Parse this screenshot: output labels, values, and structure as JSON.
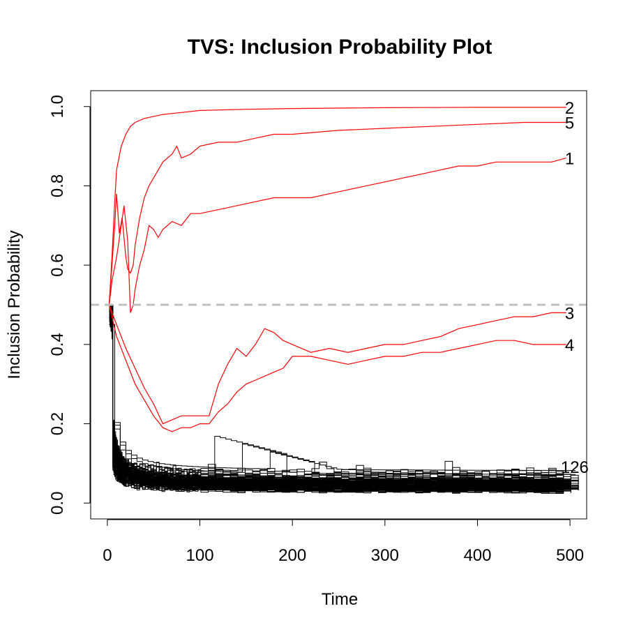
{
  "chart_data": {
    "type": "line",
    "title": "TVS: Inclusion Probability Plot",
    "xlabel": "Time",
    "ylabel": "Inclusion Probability",
    "xlim": [
      -18,
      518
    ],
    "ylim": [
      -0.04,
      1.04
    ],
    "x_ticks": [
      "0",
      "100",
      "200",
      "300",
      "400",
      "500"
    ],
    "y_ticks": [
      "0.0",
      "0.2",
      "0.4",
      "0.6",
      "0.8",
      "1.0"
    ],
    "threshold": 0.5,
    "threshold_color": "#bebebe",
    "highlight_color": "#ff0000",
    "other_color": "#000000",
    "highlighted_series": [
      {
        "name": "1",
        "points": [
          [
            2,
            0.5
          ],
          [
            5,
            0.56
          ],
          [
            10,
            0.62
          ],
          [
            15,
            0.7
          ],
          [
            18,
            0.75
          ],
          [
            22,
            0.66
          ],
          [
            25,
            0.48
          ],
          [
            28,
            0.5
          ],
          [
            30,
            0.54
          ],
          [
            35,
            0.6
          ],
          [
            40,
            0.64
          ],
          [
            45,
            0.7
          ],
          [
            50,
            0.69
          ],
          [
            55,
            0.67
          ],
          [
            60,
            0.69
          ],
          [
            70,
            0.71
          ],
          [
            80,
            0.7
          ],
          [
            90,
            0.73
          ],
          [
            100,
            0.73
          ],
          [
            120,
            0.74
          ],
          [
            140,
            0.75
          ],
          [
            160,
            0.76
          ],
          [
            180,
            0.77
          ],
          [
            200,
            0.77
          ],
          [
            220,
            0.77
          ],
          [
            240,
            0.78
          ],
          [
            260,
            0.79
          ],
          [
            280,
            0.8
          ],
          [
            300,
            0.81
          ],
          [
            320,
            0.82
          ],
          [
            340,
            0.83
          ],
          [
            360,
            0.84
          ],
          [
            380,
            0.85
          ],
          [
            400,
            0.85
          ],
          [
            420,
            0.86
          ],
          [
            440,
            0.86
          ],
          [
            460,
            0.86
          ],
          [
            480,
            0.86
          ],
          [
            496,
            0.87
          ]
        ]
      },
      {
        "name": "2",
        "points": [
          [
            2,
            0.5
          ],
          [
            5,
            0.62
          ],
          [
            8,
            0.76
          ],
          [
            10,
            0.84
          ],
          [
            15,
            0.9
          ],
          [
            20,
            0.93
          ],
          [
            25,
            0.95
          ],
          [
            30,
            0.96
          ],
          [
            40,
            0.97
          ],
          [
            60,
            0.98
          ],
          [
            80,
            0.985
          ],
          [
            100,
            0.99
          ],
          [
            150,
            0.993
          ],
          [
            200,
            0.995
          ],
          [
            300,
            0.997
          ],
          [
            400,
            0.998
          ],
          [
            496,
            0.998
          ]
        ]
      },
      {
        "name": "3",
        "points": [
          [
            2,
            0.5
          ],
          [
            10,
            0.45
          ],
          [
            20,
            0.39
          ],
          [
            30,
            0.34
          ],
          [
            40,
            0.29
          ],
          [
            50,
            0.25
          ],
          [
            60,
            0.2
          ],
          [
            70,
            0.21
          ],
          [
            80,
            0.22
          ],
          [
            90,
            0.22
          ],
          [
            100,
            0.22
          ],
          [
            110,
            0.22
          ],
          [
            120,
            0.3
          ],
          [
            130,
            0.35
          ],
          [
            140,
            0.39
          ],
          [
            150,
            0.37
          ],
          [
            160,
            0.4
          ],
          [
            170,
            0.44
          ],
          [
            180,
            0.43
          ],
          [
            190,
            0.41
          ],
          [
            200,
            0.4
          ],
          [
            220,
            0.38
          ],
          [
            240,
            0.39
          ],
          [
            260,
            0.38
          ],
          [
            280,
            0.39
          ],
          [
            300,
            0.4
          ],
          [
            320,
            0.4
          ],
          [
            340,
            0.41
          ],
          [
            360,
            0.42
          ],
          [
            380,
            0.44
          ],
          [
            400,
            0.45
          ],
          [
            420,
            0.46
          ],
          [
            440,
            0.47
          ],
          [
            460,
            0.47
          ],
          [
            480,
            0.48
          ],
          [
            496,
            0.48
          ]
        ]
      },
      {
        "name": "4",
        "points": [
          [
            2,
            0.5
          ],
          [
            10,
            0.42
          ],
          [
            20,
            0.36
          ],
          [
            30,
            0.3
          ],
          [
            40,
            0.26
          ],
          [
            50,
            0.22
          ],
          [
            60,
            0.19
          ],
          [
            70,
            0.18
          ],
          [
            80,
            0.19
          ],
          [
            90,
            0.19
          ],
          [
            100,
            0.2
          ],
          [
            110,
            0.2
          ],
          [
            120,
            0.23
          ],
          [
            130,
            0.25
          ],
          [
            140,
            0.28
          ],
          [
            150,
            0.3
          ],
          [
            160,
            0.31
          ],
          [
            170,
            0.32
          ],
          [
            180,
            0.33
          ],
          [
            190,
            0.34
          ],
          [
            200,
            0.37
          ],
          [
            220,
            0.37
          ],
          [
            240,
            0.36
          ],
          [
            260,
            0.35
          ],
          [
            280,
            0.36
          ],
          [
            300,
            0.37
          ],
          [
            320,
            0.37
          ],
          [
            340,
            0.38
          ],
          [
            360,
            0.38
          ],
          [
            380,
            0.39
          ],
          [
            400,
            0.4
          ],
          [
            420,
            0.41
          ],
          [
            440,
            0.41
          ],
          [
            460,
            0.4
          ],
          [
            480,
            0.4
          ],
          [
            496,
            0.4
          ]
        ]
      },
      {
        "name": "5",
        "points": [
          [
            2,
            0.5
          ],
          [
            5,
            0.6
          ],
          [
            8,
            0.7
          ],
          [
            10,
            0.78
          ],
          [
            13,
            0.68
          ],
          [
            16,
            0.72
          ],
          [
            20,
            0.62
          ],
          [
            22,
            0.59
          ],
          [
            25,
            0.58
          ],
          [
            28,
            0.6
          ],
          [
            30,
            0.65
          ],
          [
            35,
            0.72
          ],
          [
            40,
            0.77
          ],
          [
            45,
            0.8
          ],
          [
            50,
            0.82
          ],
          [
            60,
            0.86
          ],
          [
            70,
            0.88
          ],
          [
            75,
            0.9
          ],
          [
            80,
            0.87
          ],
          [
            90,
            0.88
          ],
          [
            100,
            0.9
          ],
          [
            120,
            0.91
          ],
          [
            140,
            0.91
          ],
          [
            160,
            0.92
          ],
          [
            180,
            0.93
          ],
          [
            200,
            0.93
          ],
          [
            250,
            0.94
          ],
          [
            300,
            0.945
          ],
          [
            350,
            0.95
          ],
          [
            400,
            0.955
          ],
          [
            450,
            0.96
          ],
          [
            496,
            0.96
          ]
        ]
      }
    ],
    "other_series_visible_labels": [
      "126"
    ]
  }
}
